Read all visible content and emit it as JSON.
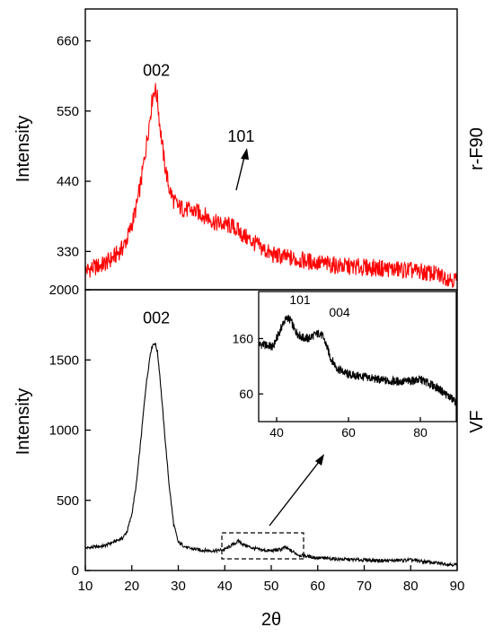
{
  "chart_data": [
    {
      "type": "line",
      "panel": "top",
      "ylabel": "Intensity",
      "side_label": "r-F90",
      "xlim": [
        10,
        90
      ],
      "ylim": [
        270,
        710
      ],
      "yticks": [
        330,
        440,
        550,
        660
      ],
      "ytick_labels": [
        "330",
        "440",
        "550",
        "660"
      ],
      "line_color": "#ff0000",
      "annotations": [
        {
          "text": "002",
          "x": 25.3,
          "y": 605
        },
        {
          "text": "101",
          "x": 43.5,
          "y": 502
        }
      ],
      "series": [
        {
          "x": [
            10,
            12,
            14,
            16,
            18,
            19,
            20,
            21,
            22,
            23,
            24,
            24.5,
            25,
            25.5,
            26,
            27,
            28,
            29,
            30,
            32,
            34,
            36,
            38,
            40,
            42,
            44,
            46,
            48,
            50,
            55,
            60,
            65,
            70,
            75,
            80,
            85,
            90
          ],
          "y": [
            300,
            305,
            310,
            320,
            335,
            350,
            372,
            400,
            440,
            490,
            545,
            575,
            585,
            570,
            530,
            470,
            430,
            410,
            400,
            395,
            392,
            385,
            375,
            372,
            368,
            355,
            345,
            335,
            325,
            318,
            312,
            307,
            305,
            303,
            300,
            295,
            285
          ]
        }
      ]
    },
    {
      "type": "line",
      "panel": "bottom",
      "xlabel": "2θ",
      "ylabel": "Intensity",
      "side_label": "VF",
      "xlim": [
        10,
        90
      ],
      "ylim": [
        0,
        2000
      ],
      "xticks": [
        10,
        20,
        30,
        40,
        50,
        60,
        70,
        80,
        90
      ],
      "xtick_labels": [
        "10",
        "20",
        "30",
        "40",
        "50",
        "60",
        "70",
        "80",
        "90"
      ],
      "yticks": [
        0,
        500,
        1000,
        1500,
        2000
      ],
      "ytick_labels": [
        "0",
        "500",
        "1000",
        "1500",
        "2000"
      ],
      "line_color": "#000000",
      "annotations": [
        {
          "text": "002",
          "x": 25.3,
          "y": 1760
        }
      ],
      "series": [
        {
          "x": [
            10,
            14,
            18,
            19,
            20,
            21,
            22,
            23,
            24,
            24.5,
            25,
            25.5,
            26,
            27,
            28,
            29,
            30,
            32,
            35,
            38,
            40,
            42,
            43,
            44,
            46,
            48,
            50,
            52,
            53,
            54,
            56,
            60,
            65,
            70,
            75,
            80,
            85,
            90
          ],
          "y": [
            160,
            175,
            230,
            280,
            400,
            620,
            950,
            1300,
            1550,
            1610,
            1620,
            1560,
            1400,
            1000,
            620,
            330,
            200,
            160,
            145,
            140,
            150,
            190,
            210,
            185,
            160,
            145,
            140,
            150,
            165,
            145,
            110,
            90,
            80,
            75,
            70,
            75,
            55,
            40
          ]
        }
      ]
    },
    {
      "type": "line",
      "panel": "inset",
      "xlim": [
        35,
        90
      ],
      "ylim": [
        10,
        245
      ],
      "xticks": [
        40,
        60,
        80
      ],
      "xtick_labels": [
        "40",
        "60",
        "80"
      ],
      "yticks": [
        60,
        160
      ],
      "ytick_labels": [
        "60",
        "160"
      ],
      "line_color": "#000000",
      "annotations": [
        {
          "text": "101",
          "x": 46.5,
          "y": 222
        },
        {
          "text": "004",
          "x": 57.5,
          "y": 200
        }
      ],
      "series": [
        {
          "x": [
            35,
            37,
            39,
            40,
            41,
            42,
            43,
            44,
            45,
            47,
            49,
            50,
            52,
            53,
            54,
            55,
            57,
            60,
            65,
            70,
            75,
            78,
            80,
            82,
            85,
            88,
            90
          ],
          "y": [
            150,
            148,
            145,
            160,
            175,
            190,
            198,
            192,
            175,
            162,
            160,
            165,
            170,
            162,
            145,
            125,
            105,
            95,
            90,
            84,
            82,
            84,
            86,
            80,
            70,
            55,
            45
          ]
        }
      ]
    }
  ]
}
